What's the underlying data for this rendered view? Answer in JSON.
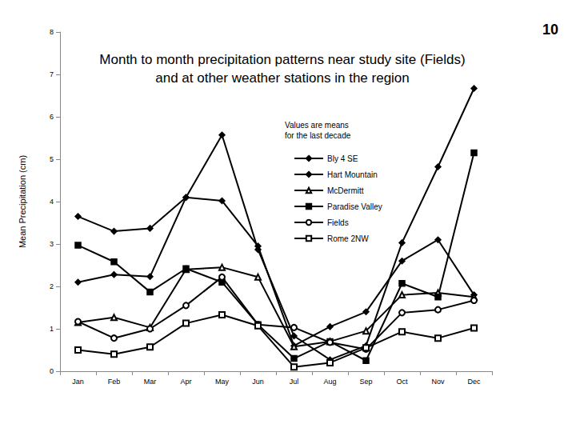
{
  "chart_data": {
    "type": "line",
    "title": "Month to month precipitation patterns near study site (Fields)\nand at other weather stations in the region",
    "ylabel": "Mean Precipitation (cm)",
    "annotations": [
      "Values are means\nfor the last decade",
      "10"
    ],
    "categories": [
      "Jan",
      "Feb",
      "Mar",
      "Apr",
      "May",
      "Jun",
      "Jul",
      "Aug",
      "Sep",
      "Oct",
      "Nov",
      "Dec"
    ],
    "series": [
      {
        "name": "Bly 4 SE",
        "color": "#000000",
        "marker": "diamond",
        "values": [
          3.65,
          3.3,
          3.37,
          4.1,
          4.02,
          2.95,
          0.6,
          1.05,
          1.4,
          2.6,
          3.1,
          1.8
        ]
      },
      {
        "name": "Hart Mountain",
        "color": "#000000",
        "marker": "diamond",
        "values": [
          2.1,
          2.28,
          2.23,
          4.1,
          5.57,
          2.87,
          0.83,
          0.27,
          0.6,
          3.03,
          4.82,
          6.67
        ]
      },
      {
        "name": "McDermitt",
        "color": "#000000",
        "marker": "emptyTriangle",
        "values": [
          1.15,
          1.27,
          1.03,
          2.4,
          2.45,
          2.22,
          0.58,
          0.7,
          0.95,
          1.8,
          1.85,
          1.75
        ]
      },
      {
        "name": "Paradise Valley",
        "color": "#000000",
        "marker": "rect",
        "values": [
          2.97,
          2.58,
          1.87,
          2.42,
          2.1,
          1.1,
          0.3,
          0.7,
          0.25,
          2.07,
          1.75,
          5.15
        ]
      },
      {
        "name": "Fields",
        "color": "#000000",
        "marker": "emptyCircle",
        "values": [
          1.17,
          0.78,
          1.0,
          1.55,
          2.22,
          1.1,
          1.03,
          0.68,
          0.52,
          1.38,
          1.45,
          1.67
        ]
      },
      {
        "name": "Rome 2NW",
        "color": "#000000",
        "marker": "emptyRect",
        "values": [
          0.5,
          0.4,
          0.57,
          1.13,
          1.33,
          1.07,
          0.1,
          0.2,
          0.55,
          0.93,
          0.78,
          1.02
        ]
      }
    ],
    "ylim": [
      0,
      8
    ],
    "yticks": [
      0,
      1,
      2,
      3,
      4,
      5,
      6,
      7,
      8
    ],
    "grid": false,
    "legend": "right"
  }
}
